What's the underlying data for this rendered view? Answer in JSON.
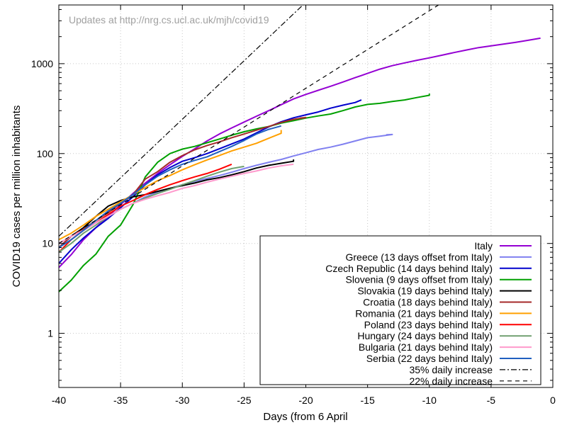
{
  "chart_data": {
    "type": "line",
    "title": "",
    "annotation": "Updates at http://nrg.cs.ucl.ac.uk/mjh/covid19",
    "xlabel": "Days (from 6 April",
    "ylabel": "COVID19 cases per million inhabitants",
    "xlim": [
      -40,
      0
    ],
    "ylim": [
      0.25,
      4500
    ],
    "yscale": "log",
    "grid": true,
    "legend_position": "bottom-right",
    "x_ticks": [
      -40,
      -35,
      -30,
      -25,
      -20,
      -15,
      -10,
      -5,
      0
    ],
    "x_tick_labels": [
      "-40",
      "-35",
      "-30",
      "-25",
      "-20",
      "-15",
      "-10",
      "-5",
      "0"
    ],
    "y_ticks": [
      1,
      10,
      100,
      1000
    ],
    "y_tick_labels": [
      "1",
      "10",
      "100",
      "1000"
    ],
    "series": [
      {
        "name": "Italy",
        "color": "#9400d3",
        "dash": "solid",
        "points": [
          [
            -40,
            5.4
          ],
          [
            -39,
            7.5
          ],
          [
            -38,
            11
          ],
          [
            -37,
            15
          ],
          [
            -36,
            20
          ],
          [
            -35,
            27
          ],
          [
            -34,
            36
          ],
          [
            -33,
            47
          ],
          [
            -32,
            60
          ],
          [
            -31,
            75
          ],
          [
            -30,
            93
          ],
          [
            -29,
            113
          ],
          [
            -28,
            138
          ],
          [
            -27,
            165
          ],
          [
            -26,
            193
          ],
          [
            -25,
            224
          ],
          [
            -24,
            260
          ],
          [
            -23,
            300
          ],
          [
            -22,
            350
          ],
          [
            -21,
            405
          ],
          [
            -20,
            455
          ],
          [
            -19,
            505
          ],
          [
            -18,
            560
          ],
          [
            -17,
            625
          ],
          [
            -16,
            700
          ],
          [
            -15,
            780
          ],
          [
            -14,
            870
          ],
          [
            -13,
            950
          ],
          [
            -12,
            1020
          ],
          [
            -11,
            1090
          ],
          [
            -10,
            1160
          ],
          [
            -9,
            1240
          ],
          [
            -8,
            1330
          ],
          [
            -7,
            1420
          ],
          [
            -6,
            1510
          ],
          [
            -5,
            1580
          ],
          [
            -4,
            1650
          ],
          [
            -3,
            1730
          ],
          [
            -2,
            1820
          ],
          [
            -1,
            1920
          ]
        ]
      },
      {
        "name": "Greece (13 days offset from Italy)",
        "color": "#8080f0",
        "dash": "solid",
        "points": [
          [
            -40,
            10
          ],
          [
            -39,
            12
          ],
          [
            -38,
            14
          ],
          [
            -37,
            17
          ],
          [
            -36,
            20
          ],
          [
            -35,
            24
          ],
          [
            -34,
            28
          ],
          [
            -33,
            33
          ],
          [
            -32,
            37
          ],
          [
            -31,
            41
          ],
          [
            -30,
            45
          ],
          [
            -29,
            49
          ],
          [
            -28,
            53
          ],
          [
            -27,
            57
          ],
          [
            -26,
            62
          ],
          [
            -25,
            68
          ],
          [
            -24,
            74
          ],
          [
            -23,
            80
          ],
          [
            -22,
            86
          ],
          [
            -21,
            94
          ],
          [
            -20,
            102
          ],
          [
            -19,
            111
          ],
          [
            -18,
            118
          ],
          [
            -17,
            127
          ],
          [
            -16,
            138
          ],
          [
            -15,
            150
          ],
          [
            -14,
            156
          ],
          [
            -13,
            163
          ],
          [
            -13.5,
            162
          ]
        ]
      },
      {
        "name": "Czech Republic (14 days behind Italy)",
        "color": "#0000cd",
        "dash": "solid",
        "points": [
          [
            -40,
            6
          ],
          [
            -39,
            8.5
          ],
          [
            -38,
            11.5
          ],
          [
            -37,
            15
          ],
          [
            -36,
            19
          ],
          [
            -35,
            25
          ],
          [
            -34,
            33
          ],
          [
            -33,
            45
          ],
          [
            -32,
            58
          ],
          [
            -31,
            70
          ],
          [
            -30,
            82
          ],
          [
            -29,
            90
          ],
          [
            -28,
            100
          ],
          [
            -27,
            113
          ],
          [
            -26,
            128
          ],
          [
            -25,
            145
          ],
          [
            -24,
            170
          ],
          [
            -23,
            198
          ],
          [
            -22,
            226
          ],
          [
            -21,
            250
          ],
          [
            -20,
            270
          ],
          [
            -19,
            290
          ],
          [
            -18,
            320
          ],
          [
            -17,
            345
          ],
          [
            -16,
            370
          ],
          [
            -15.5,
            395
          ]
        ]
      },
      {
        "name": "Slovenia (9 days offset from Italy)",
        "color": "#00a000",
        "dash": "solid",
        "points": [
          [
            -40,
            2.9
          ],
          [
            -39,
            3.9
          ],
          [
            -38,
            5.7
          ],
          [
            -37,
            7.6
          ],
          [
            -36,
            12
          ],
          [
            -35,
            16
          ],
          [
            -34,
            27
          ],
          [
            -33,
            55
          ],
          [
            -32,
            80
          ],
          [
            -31,
            100
          ],
          [
            -30,
            112
          ],
          [
            -29,
            120
          ],
          [
            -28,
            132
          ],
          [
            -27,
            145
          ],
          [
            -26,
            160
          ],
          [
            -25,
            175
          ],
          [
            -24,
            188
          ],
          [
            -23,
            200
          ],
          [
            -22,
            218
          ],
          [
            -21,
            232
          ],
          [
            -20,
            248
          ],
          [
            -19,
            262
          ],
          [
            -18,
            275
          ],
          [
            -17,
            300
          ],
          [
            -16,
            330
          ],
          [
            -15,
            352
          ],
          [
            -14,
            362
          ],
          [
            -13,
            380
          ],
          [
            -12,
            395
          ],
          [
            -11,
            420
          ],
          [
            -10,
            445
          ],
          [
            -10,
            465
          ]
        ]
      },
      {
        "name": "Slovakia (19 days behind Italy)",
        "color": "#000000",
        "dash": "solid",
        "points": [
          [
            -40,
            9
          ],
          [
            -39,
            12
          ],
          [
            -38,
            15
          ],
          [
            -37,
            20
          ],
          [
            -36,
            26
          ],
          [
            -35,
            30
          ],
          [
            -34,
            33
          ],
          [
            -33,
            35
          ],
          [
            -32,
            38
          ],
          [
            -31,
            41
          ],
          [
            -30,
            44
          ],
          [
            -29,
            47
          ],
          [
            -28,
            51
          ],
          [
            -27,
            54
          ],
          [
            -26,
            58
          ],
          [
            -25,
            63
          ],
          [
            -24,
            69
          ],
          [
            -23,
            74
          ],
          [
            -22,
            78
          ],
          [
            -21,
            82
          ],
          [
            -21,
            86
          ]
        ]
      },
      {
        "name": "Croatia (18 days behind Italy)",
        "color": "#a52a2a",
        "dash": "solid",
        "points": [
          [
            -40,
            9
          ],
          [
            -39,
            12
          ],
          [
            -38,
            14.5
          ],
          [
            -37,
            18
          ],
          [
            -36,
            22
          ],
          [
            -35,
            28
          ],
          [
            -34,
            35
          ],
          [
            -33,
            52
          ],
          [
            -32,
            63
          ],
          [
            -31,
            80
          ],
          [
            -30,
            95
          ],
          [
            -29,
            110
          ],
          [
            -28,
            123
          ],
          [
            -27,
            135
          ],
          [
            -26,
            150
          ],
          [
            -25,
            165
          ],
          [
            -24,
            182
          ],
          [
            -23,
            200
          ],
          [
            -22,
            222
          ],
          [
            -21,
            240
          ],
          [
            -20,
            252
          ],
          [
            -20.5,
            248
          ]
        ]
      },
      {
        "name": "Romania (21 days behind Italy)",
        "color": "#ffa000",
        "dash": "solid",
        "points": [
          [
            -40,
            11
          ],
          [
            -39,
            13
          ],
          [
            -38,
            16
          ],
          [
            -37,
            20
          ],
          [
            -36,
            24
          ],
          [
            -35,
            29
          ],
          [
            -34,
            35
          ],
          [
            -33,
            42
          ],
          [
            -32,
            50
          ],
          [
            -31,
            57
          ],
          [
            -30,
            66
          ],
          [
            -29,
            75
          ],
          [
            -28,
            85
          ],
          [
            -27,
            95
          ],
          [
            -26,
            107
          ],
          [
            -25,
            118
          ],
          [
            -24,
            130
          ],
          [
            -23,
            148
          ],
          [
            -22,
            168
          ],
          [
            -22,
            183
          ]
        ]
      },
      {
        "name": "Poland (23 days behind Italy)",
        "color": "#ff0000",
        "dash": "solid",
        "points": [
          [
            -40,
            8
          ],
          [
            -39,
            11
          ],
          [
            -38,
            14
          ],
          [
            -37,
            17
          ],
          [
            -36,
            21
          ],
          [
            -35,
            26
          ],
          [
            -34,
            30
          ],
          [
            -33,
            35
          ],
          [
            -32,
            40
          ],
          [
            -31,
            45
          ],
          [
            -30,
            50
          ],
          [
            -29,
            55
          ],
          [
            -28,
            60
          ],
          [
            -27,
            67
          ],
          [
            -26,
            76
          ]
        ]
      },
      {
        "name": "Hungary (24 days behind Italy)",
        "color": "#70a070",
        "dash": "solid",
        "points": [
          [
            -40,
            8
          ],
          [
            -39,
            10
          ],
          [
            -38,
            13
          ],
          [
            -37,
            16
          ],
          [
            -36,
            20
          ],
          [
            -35,
            24
          ],
          [
            -34,
            28
          ],
          [
            -33,
            32
          ],
          [
            -32,
            36
          ],
          [
            -31,
            40
          ],
          [
            -30,
            45
          ],
          [
            -29,
            50
          ],
          [
            -28,
            56
          ],
          [
            -27,
            62
          ],
          [
            -26,
            68
          ],
          [
            -25,
            72
          ]
        ]
      },
      {
        "name": "Bulgaria (21 days behind Italy)",
        "color": "#ff99cc",
        "dash": "solid",
        "points": [
          [
            -40,
            10
          ],
          [
            -39,
            12
          ],
          [
            -38,
            14
          ],
          [
            -37,
            17
          ],
          [
            -36,
            20
          ],
          [
            -35,
            24
          ],
          [
            -34,
            28
          ],
          [
            -33,
            31
          ],
          [
            -32,
            34
          ],
          [
            -31,
            37
          ],
          [
            -30,
            41
          ],
          [
            -29,
            44
          ],
          [
            -28,
            48
          ],
          [
            -27,
            52
          ],
          [
            -26,
            56
          ],
          [
            -25,
            60
          ],
          [
            -24,
            64
          ],
          [
            -23,
            69
          ],
          [
            -22,
            73
          ],
          [
            -21,
            76
          ]
        ]
      },
      {
        "name": "Serbia (22 days behind Italy)",
        "color": "#2060c0",
        "dash": "solid",
        "points": [
          [
            -40,
            9
          ],
          [
            -39,
            11
          ],
          [
            -38,
            14
          ],
          [
            -37,
            18
          ],
          [
            -36,
            23
          ],
          [
            -35,
            28
          ],
          [
            -34,
            35
          ],
          [
            -33,
            45
          ],
          [
            -32,
            56
          ],
          [
            -31,
            66
          ],
          [
            -30,
            76
          ],
          [
            -29,
            84
          ],
          [
            -28,
            92
          ],
          [
            -27,
            105
          ],
          [
            -26,
            120
          ],
          [
            -25,
            140
          ],
          [
            -24,
            165
          ],
          [
            -23,
            186
          ],
          [
            -22,
            203
          ]
        ]
      },
      {
        "name": "35% daily increase",
        "color": "#000000",
        "dash": "dashdot",
        "points": [
          [
            -40,
            12
          ],
          [
            -13.9,
            30000
          ]
        ]
      },
      {
        "name": "22% daily increase",
        "color": "#000000",
        "dash": "dashed",
        "points": [
          [
            -40,
            10
          ],
          [
            -5,
            10490
          ]
        ]
      }
    ]
  }
}
